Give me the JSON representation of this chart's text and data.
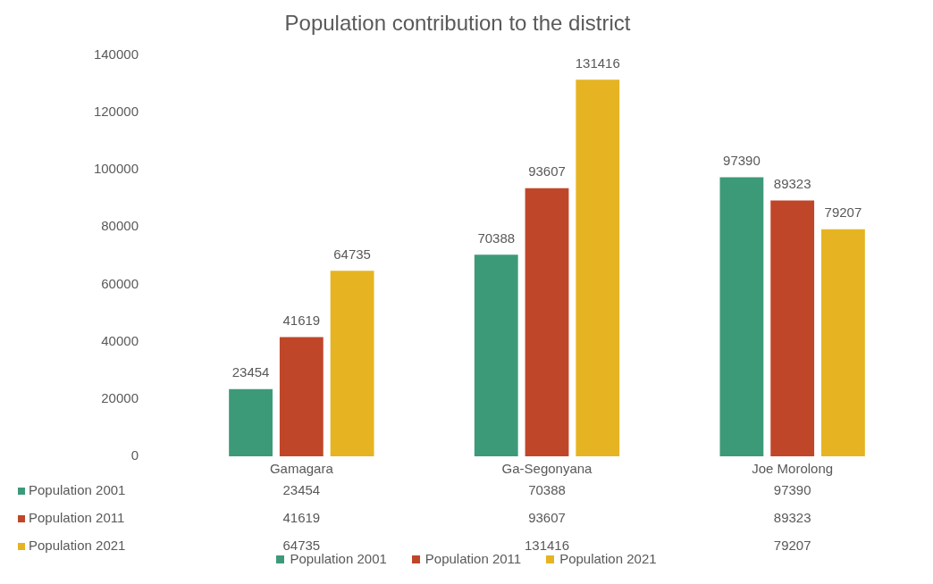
{
  "chart_data": {
    "type": "bar",
    "title": "Population contribution to the district",
    "categories": [
      "Gamagara",
      "Ga-Segonyana",
      "Joe Morolong"
    ],
    "series": [
      {
        "name": "Population 2001",
        "color": "#3d9a78",
        "values": [
          23454,
          70388,
          97390
        ]
      },
      {
        "name": "Population 2011",
        "color": "#c0462a",
        "values": [
          41619,
          93607,
          89323
        ]
      },
      {
        "name": "Population 2021",
        "color": "#e6b422",
        "values": [
          64735,
          131416,
          79207
        ]
      }
    ],
    "ylim": [
      0,
      140000
    ],
    "yticks": [
      0,
      20000,
      40000,
      60000,
      80000,
      100000,
      120000,
      140000
    ],
    "annotations": [
      "23454",
      "70388",
      "97390",
      "41619",
      "93607",
      "89323",
      "64735",
      "131416",
      "79207"
    ],
    "grid": false,
    "legend": "bottom",
    "data_labels": true
  }
}
